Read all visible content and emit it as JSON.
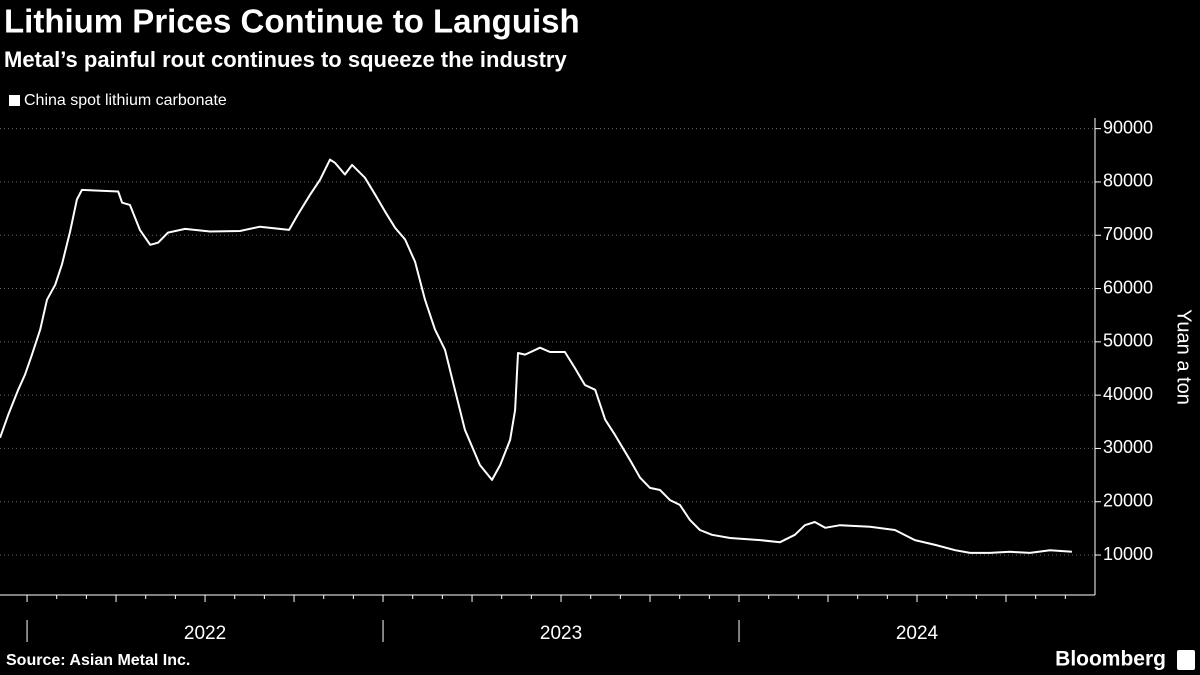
{
  "chart_data": {
    "type": "line",
    "title": "Lithium Prices Continue to Languish",
    "subtitle": "Metal’s painful rout continues to squeeze the industry",
    "y_label": "Yuan a ton",
    "source": "Source: Asian Metal Inc.",
    "brand": "Bloomberg",
    "series": [
      {
        "name": "China spot lithium carbonate",
        "color": "#ffffff",
        "x": [
          2021.924,
          2021.947,
          2021.975,
          2021.994,
          2022.014,
          2022.037,
          2022.056,
          2022.079,
          2022.098,
          2022.121,
          2022.14,
          2022.154,
          2022.191,
          2022.256,
          2022.267,
          2022.289,
          2022.317,
          2022.346,
          2022.368,
          2022.396,
          2022.444,
          2022.514,
          2022.598,
          2022.654,
          2022.736,
          2022.76,
          2022.795,
          2022.823,
          2022.851,
          2022.865,
          2022.893,
          2022.913,
          2022.949,
          2022.978,
          2023.006,
          2023.034,
          2023.062,
          2023.09,
          2023.118,
          2023.146,
          2023.174,
          2023.202,
          2023.23,
          2023.272,
          2023.306,
          2023.329,
          2023.357,
          2023.371,
          2023.379,
          2023.399,
          2023.441,
          2023.469,
          2023.511,
          2023.539,
          2023.567,
          2023.596,
          2023.624,
          2023.652,
          2023.694,
          2023.722,
          2023.75,
          2023.778,
          2023.806,
          2023.834,
          2023.862,
          2023.89,
          2023.924,
          2023.975,
          2024.059,
          2024.115,
          2024.157,
          2024.185,
          2024.213,
          2024.242,
          2024.284,
          2024.368,
          2024.438,
          2024.494,
          2024.551,
          2024.607,
          2024.649,
          2024.705,
          2024.761,
          2024.817,
          2024.874,
          2024.935
        ],
        "values": [
          32000,
          36300,
          41000,
          43800,
          47600,
          52300,
          57900,
          60700,
          64500,
          70700,
          76700,
          78500,
          78400,
          78200,
          76100,
          75700,
          71000,
          68200,
          68600,
          70500,
          71200,
          70700,
          70800,
          71600,
          71000,
          73800,
          77600,
          80400,
          84200,
          83600,
          81400,
          83200,
          80800,
          77600,
          74400,
          71400,
          69200,
          65000,
          57900,
          52300,
          48500,
          41000,
          33500,
          26900,
          24100,
          26900,
          31600,
          37200,
          47900,
          47600,
          48900,
          48100,
          48100,
          45100,
          41900,
          41000,
          35400,
          32500,
          27800,
          24500,
          22600,
          22200,
          20300,
          19400,
          16600,
          14700,
          13800,
          13200,
          12800,
          12400,
          13800,
          15600,
          16200,
          15100,
          15600,
          15300,
          14700,
          12800,
          11900,
          10900,
          10400,
          10400,
          10600,
          10400,
          10900,
          10600
        ]
      }
    ],
    "xlim": [
      2021.924,
      2025.0
    ],
    "year_ticks": [
      2022,
      2023,
      2024
    ],
    "xticks": [
      {
        "value": 2022.5,
        "label": "2022"
      },
      {
        "value": 2023.5,
        "label": "2023"
      },
      {
        "value": 2024.5,
        "label": "2024"
      }
    ],
    "ylim": [
      2500,
      92000
    ],
    "yticks": [
      10000,
      20000,
      30000,
      40000,
      50000,
      60000,
      70000,
      80000,
      90000
    ],
    "grid": true
  }
}
